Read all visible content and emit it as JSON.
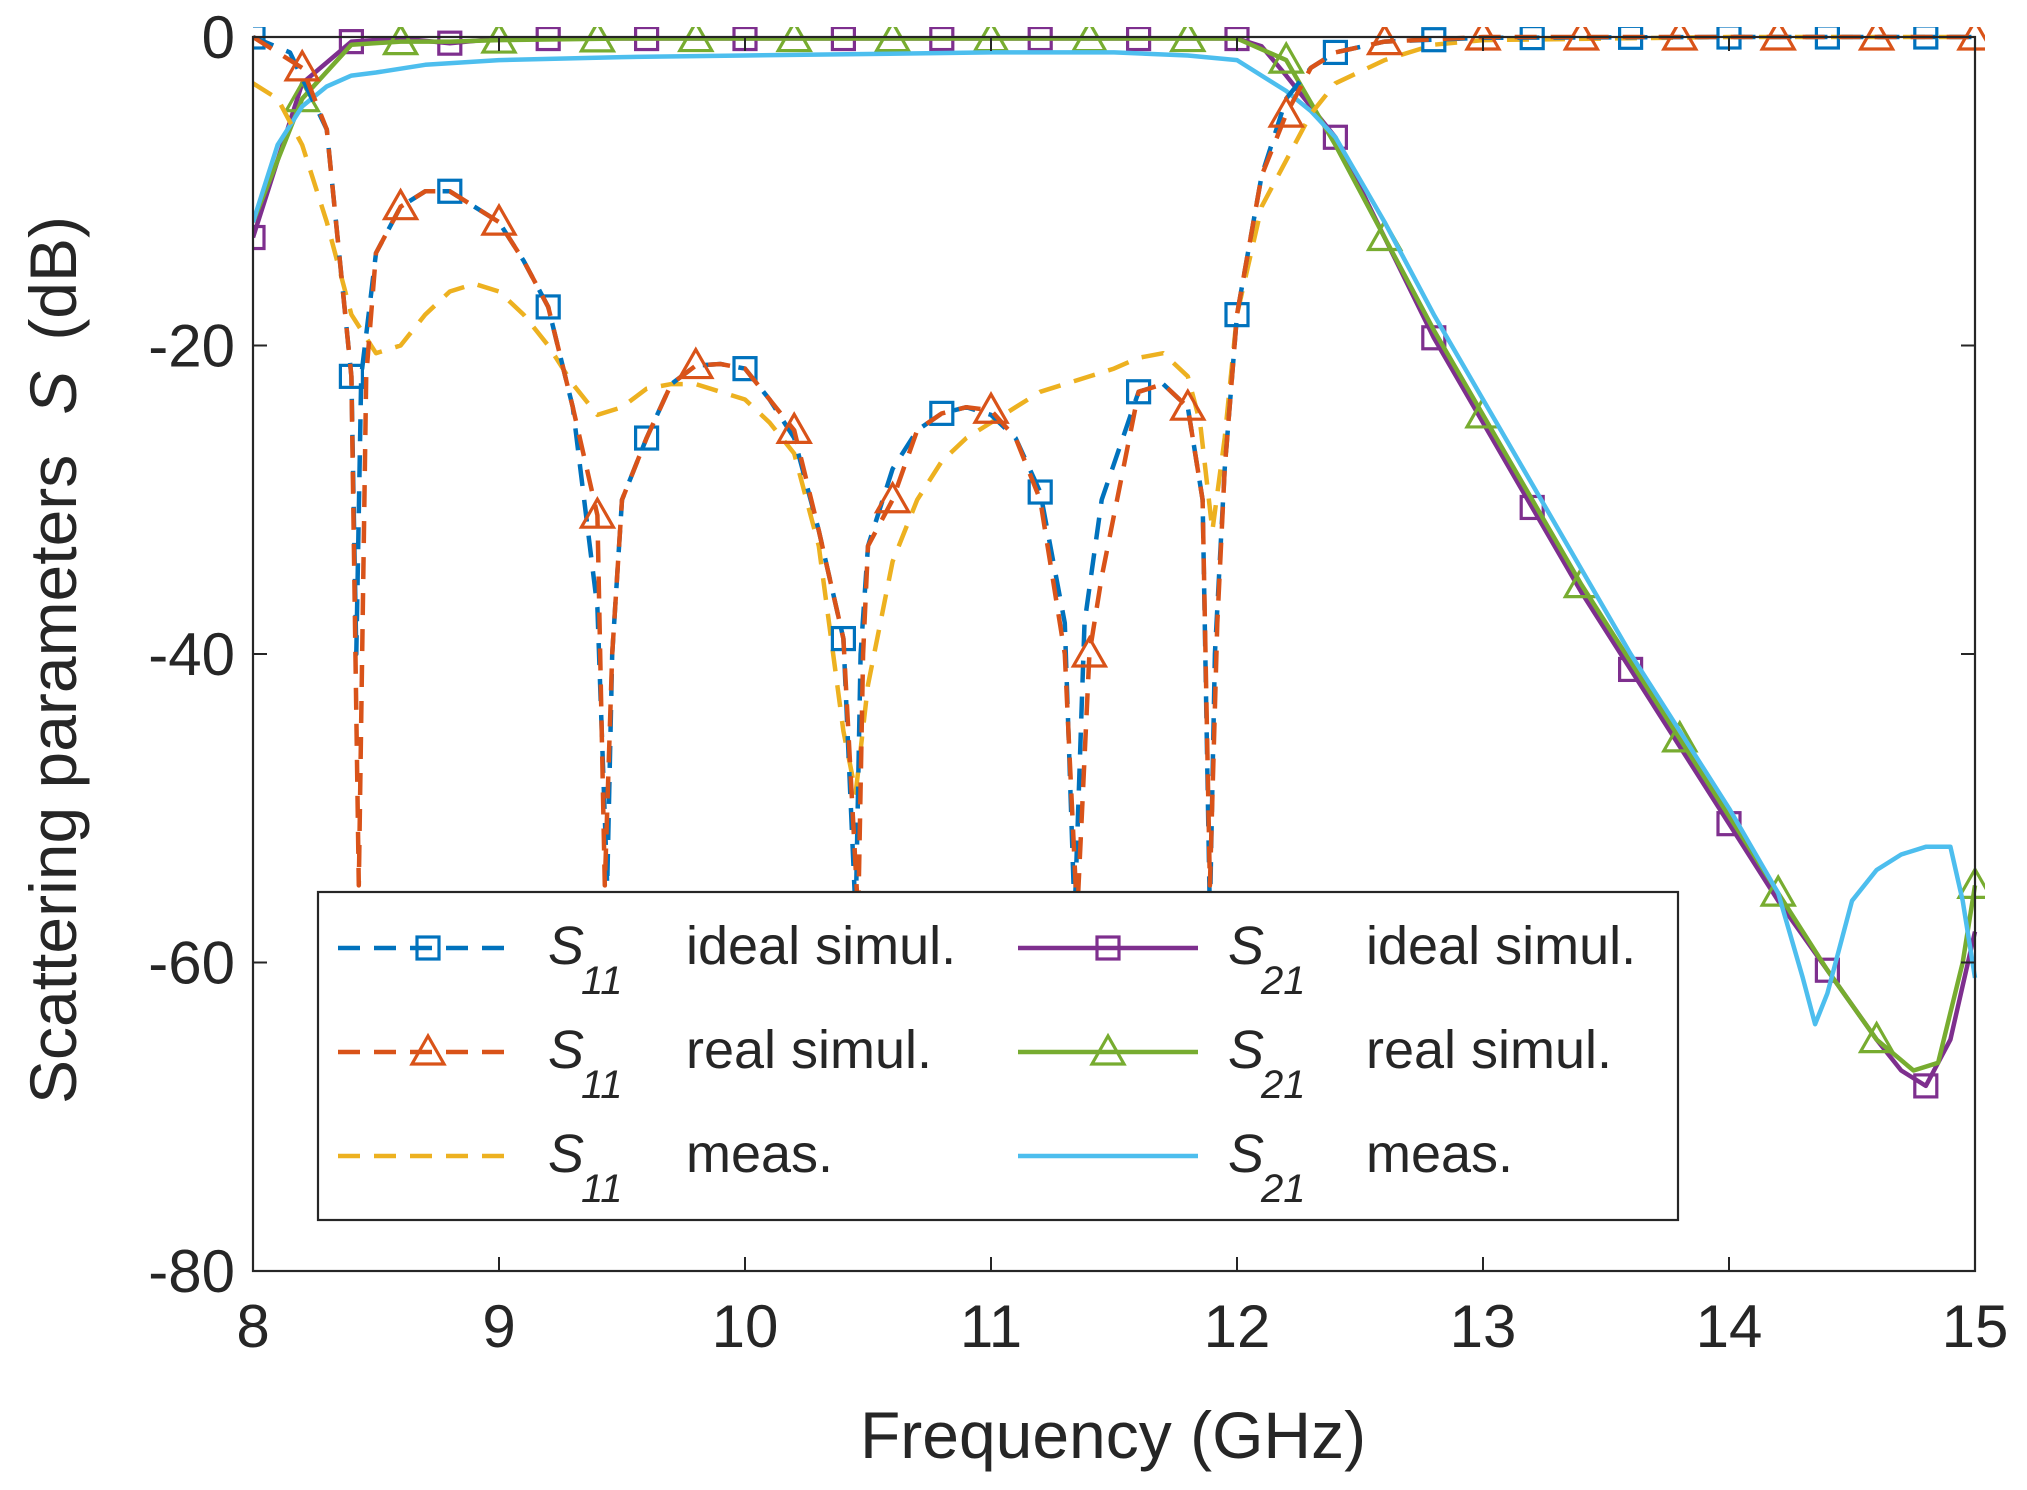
{
  "chart_data": {
    "type": "line",
    "title": "",
    "xlabel": "Frequency (GHz)",
    "ylabel": "Scattering parameters",
    "ylabel_symbol": "S",
    "ylabel_unit": "(dB)",
    "xlim": [
      8,
      15
    ],
    "ylim": [
      -80,
      0
    ],
    "xticks": [
      8,
      9,
      10,
      11,
      12,
      13,
      14,
      15
    ],
    "yticks": [
      0,
      -20,
      -40,
      -60,
      -80
    ],
    "grid": false,
    "legend": {
      "placement": "lower-center",
      "columns": 2
    },
    "series": [
      {
        "name": "S11 ideal simul.",
        "symbol": "S",
        "subscript": "11",
        "desc": "ideal simul.",
        "color": "#0072BD",
        "dash": "dashed",
        "marker": "square",
        "x": [
          8.0,
          8.15,
          8.3,
          8.4,
          8.42,
          8.44,
          8.5,
          8.6,
          8.7,
          8.8,
          8.9,
          9.0,
          9.1,
          9.2,
          9.3,
          9.4,
          9.44,
          9.46,
          9.5,
          9.6,
          9.7,
          9.8,
          9.9,
          10.0,
          10.1,
          10.2,
          10.3,
          10.4,
          10.45,
          10.47,
          10.5,
          10.6,
          10.7,
          10.8,
          10.9,
          11.0,
          11.1,
          11.2,
          11.3,
          11.34,
          11.38,
          11.45,
          11.6,
          11.7,
          11.8,
          11.86,
          11.89,
          11.91,
          11.95,
          12.0,
          12.1,
          12.2,
          12.3,
          12.4,
          12.6,
          13.0,
          14.0,
          15.0
        ],
        "y": [
          0.0,
          -1.0,
          -6.0,
          -22.0,
          -40.0,
          -22.0,
          -14.0,
          -11.0,
          -10.0,
          -10.0,
          -11.0,
          -12.0,
          -14.5,
          -17.5,
          -24.0,
          -37.0,
          -55.0,
          -40.0,
          -30.0,
          -26.0,
          -22.5,
          -21.3,
          -21.2,
          -21.5,
          -23.5,
          -26.0,
          -32.0,
          -39.0,
          -57.0,
          -40.0,
          -33.0,
          -28.0,
          -25.5,
          -24.4,
          -24.0,
          -24.5,
          -26.0,
          -29.5,
          -38.0,
          -57.0,
          -38.0,
          -30.0,
          -23.0,
          -22.5,
          -24.0,
          -30.0,
          -57.0,
          -40.0,
          -28.0,
          -18.0,
          -9.0,
          -4.0,
          -2.0,
          -1.0,
          -0.3,
          -0.05,
          0.0,
          0.0
        ]
      },
      {
        "name": "S11 real simul.",
        "symbol": "S",
        "subscript": "11",
        "desc": "real simul.",
        "color": "#D95319",
        "dash": "dashed",
        "marker": "triangle",
        "x": [
          8.0,
          8.2,
          8.3,
          8.4,
          8.43,
          8.46,
          8.5,
          8.6,
          8.7,
          8.8,
          8.9,
          9.0,
          9.1,
          9.2,
          9.3,
          9.4,
          9.43,
          9.46,
          9.5,
          9.6,
          9.7,
          9.8,
          9.9,
          10.0,
          10.1,
          10.2,
          10.3,
          10.4,
          10.46,
          10.48,
          10.5,
          10.6,
          10.7,
          10.8,
          10.9,
          11.0,
          11.1,
          11.2,
          11.3,
          11.35,
          11.4,
          11.45,
          11.6,
          11.7,
          11.8,
          11.86,
          11.89,
          11.92,
          11.95,
          12.0,
          12.1,
          12.2,
          12.3,
          12.4,
          12.6,
          13.0,
          14.0,
          15.0
        ],
        "y": [
          0.0,
          -2.0,
          -6.0,
          -22.0,
          -55.0,
          -22.0,
          -14.0,
          -11.0,
          -10.0,
          -10.0,
          -11.0,
          -12.0,
          -14.5,
          -17.5,
          -24.0,
          -31.0,
          -55.0,
          -40.0,
          -30.0,
          -26.0,
          -22.5,
          -21.3,
          -21.2,
          -21.5,
          -23.5,
          -25.5,
          -32.0,
          -39.0,
          -57.0,
          -40.0,
          -33.0,
          -30.0,
          -25.5,
          -24.4,
          -24.0,
          -24.2,
          -26.0,
          -30.0,
          -40.0,
          -57.0,
          -40.0,
          -35.0,
          -23.0,
          -22.5,
          -24.0,
          -30.0,
          -55.0,
          -38.0,
          -28.0,
          -18.0,
          -9.0,
          -5.0,
          -2.0,
          -1.0,
          -0.3,
          0.0,
          0.0,
          0.0
        ]
      },
      {
        "name": "S11 meas.",
        "symbol": "S",
        "subscript": "11",
        "desc": "meas.",
        "color": "#EDB120",
        "dash": "dashed",
        "marker": "none",
        "x": [
          8.0,
          8.1,
          8.2,
          8.3,
          8.4,
          8.5,
          8.6,
          8.7,
          8.8,
          8.9,
          9.0,
          9.1,
          9.2,
          9.3,
          9.4,
          9.5,
          9.6,
          9.7,
          9.8,
          9.9,
          10.0,
          10.1,
          10.2,
          10.3,
          10.4,
          10.45,
          10.5,
          10.6,
          10.7,
          10.8,
          10.9,
          11.0,
          11.1,
          11.2,
          11.3,
          11.4,
          11.5,
          11.6,
          11.7,
          11.8,
          11.85,
          11.9,
          11.95,
          12.0,
          12.1,
          12.2,
          12.3,
          12.4,
          12.6,
          12.8,
          13.0,
          14.0,
          15.0
        ],
        "y": [
          -3.0,
          -4.0,
          -7.0,
          -12.0,
          -18.0,
          -20.5,
          -20.0,
          -18.0,
          -16.5,
          -16.0,
          -16.5,
          -18.0,
          -20.0,
          -22.5,
          -24.5,
          -24.0,
          -22.8,
          -22.5,
          -22.5,
          -23.0,
          -23.5,
          -25.0,
          -27.0,
          -33.0,
          -45.0,
          -49.0,
          -42.0,
          -34.0,
          -30.0,
          -27.5,
          -26.0,
          -25.0,
          -24.0,
          -23.0,
          -22.5,
          -22.0,
          -21.5,
          -20.8,
          -20.5,
          -22.0,
          -25.0,
          -32.0,
          -26.0,
          -18.0,
          -11.0,
          -8.0,
          -5.0,
          -3.0,
          -1.5,
          -0.5,
          -0.2,
          0.0,
          0.0
        ]
      },
      {
        "name": "S21 ideal simul.",
        "symbol": "S",
        "subscript": "21",
        "desc": "ideal simul.",
        "color": "#7E2F8E",
        "dash": "solid",
        "marker": "square",
        "x": [
          8.0,
          8.2,
          8.4,
          8.6,
          8.8,
          9.0,
          9.5,
          10.0,
          10.5,
          11.0,
          11.5,
          12.0,
          12.1,
          12.2,
          12.4,
          12.6,
          12.8,
          13.0,
          13.2,
          13.4,
          13.6,
          13.8,
          14.0,
          14.2,
          14.4,
          14.6,
          14.7,
          14.8,
          14.9,
          15.0
        ],
        "y": [
          -13.0,
          -3.0,
          -0.3,
          -0.1,
          -0.4,
          -0.1,
          -0.1,
          -0.1,
          -0.1,
          -0.1,
          -0.1,
          -0.1,
          -0.6,
          -2.5,
          -6.5,
          -13.0,
          -19.5,
          -25.0,
          -30.5,
          -36.0,
          -41.0,
          -46.0,
          -51.0,
          -56.0,
          -60.5,
          -65.0,
          -67.0,
          -68.0,
          -65.0,
          -58.0
        ]
      },
      {
        "name": "S21 real simul.",
        "symbol": "S",
        "subscript": "21",
        "desc": "real simul.",
        "color": "#77AC30",
        "dash": "solid",
        "marker": "triangle",
        "x": [
          8.0,
          8.2,
          8.4,
          8.6,
          8.8,
          9.0,
          9.5,
          10.0,
          10.5,
          11.0,
          11.5,
          12.0,
          12.1,
          12.2,
          12.4,
          12.6,
          12.8,
          13.0,
          13.2,
          13.4,
          13.6,
          13.8,
          14.0,
          14.2,
          14.4,
          14.6,
          14.75,
          14.85,
          14.95,
          15.0
        ],
        "y": [
          -12.0,
          -4.0,
          -0.5,
          -0.3,
          -0.3,
          -0.2,
          -0.1,
          -0.1,
          -0.1,
          -0.1,
          -0.1,
          -0.1,
          -0.8,
          -1.5,
          -7.0,
          -13.0,
          -19.0,
          -24.5,
          -30.0,
          -35.5,
          -40.5,
          -45.5,
          -50.5,
          -55.5,
          -60.5,
          -65.0,
          -67.0,
          -66.5,
          -60.0,
          -55.0
        ]
      },
      {
        "name": "S21 meas.",
        "symbol": "S",
        "subscript": "21",
        "desc": "meas.",
        "color": "#4DBEEE",
        "dash": "solid",
        "marker": "none",
        "x": [
          8.0,
          8.1,
          8.2,
          8.3,
          8.4,
          8.5,
          8.7,
          9.0,
          9.5,
          10.0,
          10.5,
          11.0,
          11.5,
          11.8,
          12.0,
          12.1,
          12.2,
          12.3,
          12.4,
          12.6,
          12.8,
          13.0,
          13.2,
          13.4,
          13.6,
          13.8,
          14.0,
          14.2,
          14.3,
          14.35,
          14.4,
          14.5,
          14.6,
          14.7,
          14.8,
          14.9,
          14.95,
          15.0
        ],
        "y": [
          -12.0,
          -7.0,
          -4.5,
          -3.2,
          -2.5,
          -2.3,
          -1.8,
          -1.5,
          -1.3,
          -1.2,
          -1.1,
          -1.0,
          -1.0,
          -1.2,
          -1.5,
          -2.5,
          -3.5,
          -4.8,
          -6.5,
          -12.0,
          -18.0,
          -23.5,
          -29.0,
          -34.5,
          -40.0,
          -45.0,
          -50.0,
          -55.5,
          -61.0,
          -64.0,
          -62.0,
          -56.0,
          -54.0,
          -53.0,
          -52.5,
          -52.5,
          -56.0,
          -61.0
        ]
      }
    ]
  }
}
